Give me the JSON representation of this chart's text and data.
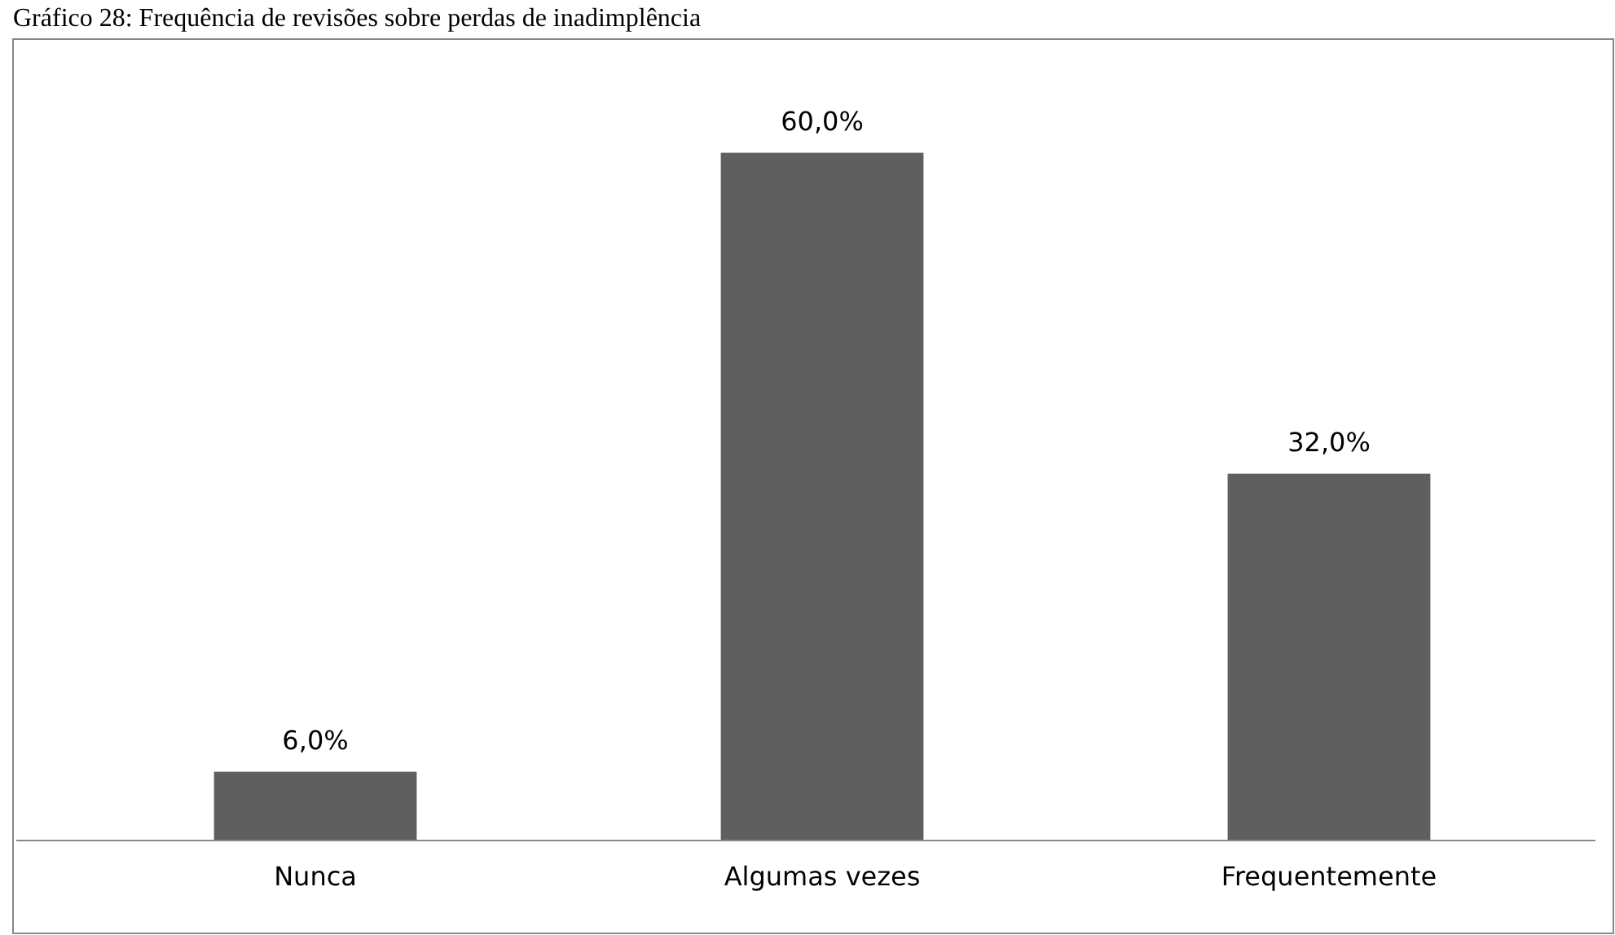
{
  "chart_data": {
    "type": "bar",
    "title": "Gráfico 28: Frequência de revisões sobre perdas de inadimplência",
    "categories": [
      "Nunca",
      "Algumas vezes",
      "Frequentemente"
    ],
    "values": [
      6.0,
      60.0,
      32.0
    ],
    "value_labels": [
      "6,0%",
      "60,0%",
      "32,0%"
    ],
    "color": "#5f5f5f"
  }
}
